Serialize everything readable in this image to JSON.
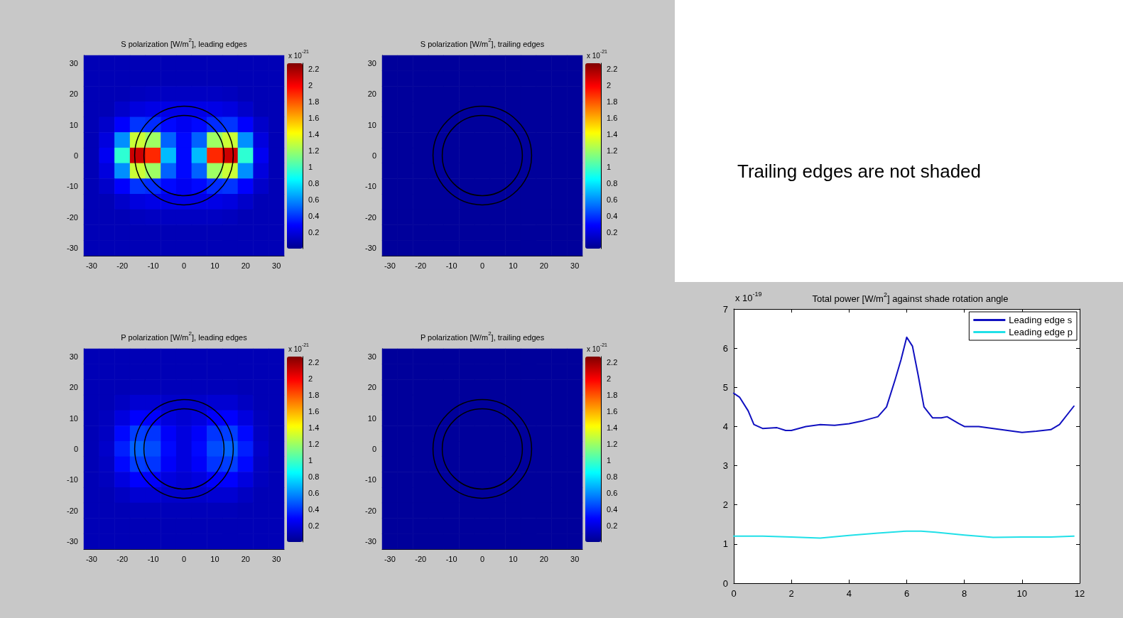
{
  "chart_data": [
    {
      "type": "heatmap",
      "title": "S polarization [W/m$^{2}$], leading edges",
      "clabel": "x 10$^{-21}$",
      "categories": [
        "-30",
        null,
        "-20",
        null,
        "-10",
        null,
        "0",
        null,
        "10",
        null,
        "20",
        null,
        "30"
      ],
      "y_categories": [
        "30",
        null,
        "20",
        null,
        "10",
        null,
        "0",
        null,
        "-10",
        null,
        "-20",
        null,
        "-30"
      ],
      "clim": [
        0,
        2.27
      ],
      "cticks": [
        0.2,
        0.4,
        0.6,
        0.8,
        1,
        1.2,
        1.4,
        1.6,
        1.8,
        2,
        2.2
      ],
      "cells": [
        [
          0.1,
          0.1,
          0.1,
          0.1,
          0.1,
          0.1,
          0.1,
          0.1,
          0.1,
          0.1,
          0.1,
          0.1,
          0.1
        ],
        [
          0.1,
          0.1,
          0.1,
          0.1,
          0.1,
          0.1,
          0.1,
          0.1,
          0.1,
          0.1,
          0.1,
          0.1,
          0.1
        ],
        [
          0.1,
          0.1,
          0.1,
          0.12,
          0.13,
          0.13,
          0.13,
          0.13,
          0.13,
          0.12,
          0.1,
          0.1,
          0.1
        ],
        [
          0.1,
          0.1,
          0.15,
          0.2,
          0.22,
          0.22,
          0.22,
          0.22,
          0.22,
          0.2,
          0.15,
          0.1,
          0.1
        ],
        [
          0.1,
          0.15,
          0.28,
          0.4,
          0.38,
          0.3,
          0.25,
          0.3,
          0.38,
          0.4,
          0.28,
          0.15,
          0.1
        ],
        [
          0.1,
          0.2,
          0.6,
          1.3,
          1.2,
          0.5,
          0.3,
          0.5,
          1.2,
          1.3,
          0.6,
          0.2,
          0.1
        ],
        [
          0.1,
          0.25,
          0.95,
          2.1,
          1.9,
          0.7,
          0.3,
          0.7,
          1.9,
          2.1,
          0.95,
          0.25,
          0.1
        ],
        [
          0.1,
          0.2,
          0.6,
          1.3,
          1.2,
          0.5,
          0.3,
          0.5,
          1.2,
          1.3,
          0.6,
          0.2,
          0.1
        ],
        [
          0.1,
          0.15,
          0.28,
          0.4,
          0.38,
          0.3,
          0.25,
          0.3,
          0.38,
          0.4,
          0.28,
          0.15,
          0.1
        ],
        [
          0.1,
          0.1,
          0.15,
          0.2,
          0.22,
          0.22,
          0.22,
          0.22,
          0.22,
          0.2,
          0.15,
          0.1,
          0.1
        ],
        [
          0.1,
          0.1,
          0.1,
          0.12,
          0.13,
          0.13,
          0.13,
          0.13,
          0.13,
          0.12,
          0.1,
          0.1,
          0.1
        ],
        [
          0.1,
          0.1,
          0.1,
          0.1,
          0.1,
          0.1,
          0.1,
          0.1,
          0.1,
          0.1,
          0.1,
          0.1,
          0.1
        ],
        [
          0.1,
          0.1,
          0.1,
          0.1,
          0.1,
          0.1,
          0.1,
          0.1,
          0.1,
          0.1,
          0.1,
          0.1,
          0.1
        ]
      ]
    },
    {
      "type": "heatmap",
      "title": "S polarization [W/m$^{2}$], trailing edges",
      "clabel": "x 10$^{-21}$",
      "categories": [
        "-30",
        null,
        "-20",
        null,
        "-10",
        null,
        "0",
        null,
        "10",
        null,
        "20",
        null,
        "30"
      ],
      "y_categories": [
        "30",
        null,
        "20",
        null,
        "10",
        null,
        "0",
        null,
        "-10",
        null,
        "-20",
        null,
        "-30"
      ],
      "clim": [
        0,
        2.27
      ],
      "cticks": [
        0.2,
        0.4,
        0.6,
        0.8,
        1,
        1.2,
        1.4,
        1.6,
        1.8,
        2,
        2.2
      ],
      "cells": [
        [
          0.03,
          0.03,
          0.03,
          0.03,
          0.03,
          0.03,
          0.03,
          0.03,
          0.03,
          0.03,
          0.03,
          0.03,
          0.03
        ],
        [
          0.03,
          0.03,
          0.03,
          0.03,
          0.03,
          0.03,
          0.03,
          0.03,
          0.03,
          0.03,
          0.03,
          0.03,
          0.03
        ],
        [
          0.03,
          0.03,
          0.03,
          0.03,
          0.03,
          0.03,
          0.03,
          0.03,
          0.03,
          0.03,
          0.03,
          0.03,
          0.03
        ],
        [
          0.03,
          0.03,
          0.03,
          0.03,
          0.03,
          0.03,
          0.03,
          0.03,
          0.03,
          0.03,
          0.03,
          0.03,
          0.03
        ],
        [
          0.03,
          0.03,
          0.03,
          0.03,
          0.03,
          0.03,
          0.03,
          0.03,
          0.03,
          0.03,
          0.03,
          0.03,
          0.03
        ],
        [
          0.03,
          0.03,
          0.03,
          0.03,
          0.03,
          0.03,
          0.03,
          0.03,
          0.03,
          0.03,
          0.03,
          0.03,
          0.03
        ],
        [
          0.03,
          0.03,
          0.03,
          0.03,
          0.03,
          0.03,
          0.03,
          0.03,
          0.03,
          0.03,
          0.03,
          0.03,
          0.03
        ],
        [
          0.03,
          0.03,
          0.03,
          0.03,
          0.03,
          0.03,
          0.03,
          0.03,
          0.03,
          0.03,
          0.03,
          0.03,
          0.03
        ],
        [
          0.03,
          0.03,
          0.03,
          0.03,
          0.03,
          0.03,
          0.03,
          0.03,
          0.03,
          0.03,
          0.03,
          0.03,
          0.03
        ],
        [
          0.03,
          0.03,
          0.03,
          0.03,
          0.03,
          0.03,
          0.03,
          0.03,
          0.03,
          0.03,
          0.03,
          0.03,
          0.03
        ],
        [
          0.03,
          0.03,
          0.03,
          0.03,
          0.03,
          0.03,
          0.03,
          0.03,
          0.03,
          0.03,
          0.03,
          0.03,
          0.03
        ],
        [
          0.03,
          0.03,
          0.03,
          0.03,
          0.03,
          0.03,
          0.03,
          0.03,
          0.03,
          0.03,
          0.03,
          0.03,
          0.03
        ],
        [
          0.03,
          0.03,
          0.03,
          0.03,
          0.03,
          0.03,
          0.03,
          0.03,
          0.03,
          0.03,
          0.03,
          0.03,
          0.03
        ]
      ]
    },
    {
      "type": "other",
      "annotations": [
        "Trailing edges are not shaded"
      ]
    },
    {
      "type": "heatmap",
      "title": "P polarization [W/m$^{2}$], leading edges",
      "clabel": "x 10$^{-21}$",
      "categories": [
        "-30",
        null,
        "-20",
        null,
        "-10",
        null,
        "0",
        null,
        "10",
        null,
        "20",
        null,
        "30"
      ],
      "y_categories": [
        "30",
        null,
        "20",
        null,
        "10",
        null,
        "0",
        null,
        "-10",
        null,
        "-20",
        null,
        "-30"
      ],
      "clim": [
        0,
        2.27
      ],
      "cticks": [
        0.2,
        0.4,
        0.6,
        0.8,
        1,
        1.2,
        1.4,
        1.6,
        1.8,
        2,
        2.2
      ],
      "cells": [
        [
          0.1,
          0.1,
          0.1,
          0.1,
          0.1,
          0.1,
          0.1,
          0.1,
          0.1,
          0.1,
          0.1,
          0.1,
          0.1
        ],
        [
          0.1,
          0.1,
          0.1,
          0.1,
          0.1,
          0.1,
          0.1,
          0.1,
          0.1,
          0.1,
          0.1,
          0.1,
          0.1
        ],
        [
          0.1,
          0.1,
          0.1,
          0.11,
          0.11,
          0.11,
          0.11,
          0.11,
          0.11,
          0.11,
          0.1,
          0.1,
          0.1
        ],
        [
          0.1,
          0.1,
          0.13,
          0.17,
          0.17,
          0.15,
          0.15,
          0.15,
          0.17,
          0.17,
          0.13,
          0.1,
          0.1
        ],
        [
          0.1,
          0.12,
          0.2,
          0.28,
          0.27,
          0.2,
          0.17,
          0.2,
          0.27,
          0.28,
          0.2,
          0.12,
          0.1
        ],
        [
          0.1,
          0.13,
          0.3,
          0.42,
          0.4,
          0.27,
          0.2,
          0.27,
          0.4,
          0.42,
          0.3,
          0.13,
          0.1
        ],
        [
          0.1,
          0.15,
          0.35,
          0.5,
          0.45,
          0.3,
          0.2,
          0.3,
          0.45,
          0.5,
          0.35,
          0.15,
          0.1
        ],
        [
          0.1,
          0.13,
          0.3,
          0.42,
          0.4,
          0.27,
          0.2,
          0.27,
          0.4,
          0.42,
          0.3,
          0.13,
          0.1
        ],
        [
          0.1,
          0.12,
          0.2,
          0.28,
          0.27,
          0.2,
          0.17,
          0.2,
          0.27,
          0.28,
          0.2,
          0.12,
          0.1
        ],
        [
          0.1,
          0.1,
          0.13,
          0.17,
          0.17,
          0.15,
          0.15,
          0.15,
          0.17,
          0.17,
          0.13,
          0.1,
          0.1
        ],
        [
          0.1,
          0.1,
          0.1,
          0.11,
          0.11,
          0.11,
          0.11,
          0.11,
          0.11,
          0.11,
          0.1,
          0.1,
          0.1
        ],
        [
          0.1,
          0.1,
          0.1,
          0.1,
          0.1,
          0.1,
          0.1,
          0.1,
          0.1,
          0.1,
          0.1,
          0.1,
          0.1
        ],
        [
          0.1,
          0.1,
          0.1,
          0.1,
          0.1,
          0.1,
          0.1,
          0.1,
          0.1,
          0.1,
          0.1,
          0.1,
          0.1
        ]
      ]
    },
    {
      "type": "heatmap",
      "title": "P polarization [W/m$^{2}$], trailing edges",
      "clabel": "x 10$^{-21}$",
      "categories": [
        "-30",
        null,
        "-20",
        null,
        "-10",
        null,
        "0",
        null,
        "10",
        null,
        "20",
        null,
        "30"
      ],
      "y_categories": [
        "30",
        null,
        "20",
        null,
        "10",
        null,
        "0",
        null,
        "-10",
        null,
        "-20",
        null,
        "-30"
      ],
      "clim": [
        0,
        2.27
      ],
      "cticks": [
        0.2,
        0.4,
        0.6,
        0.8,
        1,
        1.2,
        1.4,
        1.6,
        1.8,
        2,
        2.2
      ],
      "cells": [
        [
          0.03,
          0.03,
          0.03,
          0.03,
          0.03,
          0.03,
          0.03,
          0.03,
          0.03,
          0.03,
          0.03,
          0.03,
          0.03
        ],
        [
          0.03,
          0.03,
          0.03,
          0.03,
          0.03,
          0.03,
          0.03,
          0.03,
          0.03,
          0.03,
          0.03,
          0.03,
          0.03
        ],
        [
          0.03,
          0.03,
          0.03,
          0.03,
          0.03,
          0.03,
          0.03,
          0.03,
          0.03,
          0.03,
          0.03,
          0.03,
          0.03
        ],
        [
          0.03,
          0.03,
          0.03,
          0.03,
          0.03,
          0.03,
          0.03,
          0.03,
          0.03,
          0.03,
          0.03,
          0.03,
          0.03
        ],
        [
          0.03,
          0.03,
          0.03,
          0.03,
          0.03,
          0.03,
          0.03,
          0.03,
          0.03,
          0.03,
          0.03,
          0.03,
          0.03
        ],
        [
          0.03,
          0.03,
          0.03,
          0.03,
          0.03,
          0.03,
          0.03,
          0.03,
          0.03,
          0.03,
          0.03,
          0.03,
          0.03
        ],
        [
          0.03,
          0.03,
          0.03,
          0.03,
          0.03,
          0.03,
          0.03,
          0.03,
          0.03,
          0.03,
          0.03,
          0.03,
          0.03
        ],
        [
          0.03,
          0.03,
          0.03,
          0.03,
          0.03,
          0.03,
          0.03,
          0.03,
          0.03,
          0.03,
          0.03,
          0.03,
          0.03
        ],
        [
          0.03,
          0.03,
          0.03,
          0.03,
          0.03,
          0.03,
          0.03,
          0.03,
          0.03,
          0.03,
          0.03,
          0.03,
          0.03
        ],
        [
          0.03,
          0.03,
          0.03,
          0.03,
          0.03,
          0.03,
          0.03,
          0.03,
          0.03,
          0.03,
          0.03,
          0.03,
          0.03
        ],
        [
          0.03,
          0.03,
          0.03,
          0.03,
          0.03,
          0.03,
          0.03,
          0.03,
          0.03,
          0.03,
          0.03,
          0.03,
          0.03
        ],
        [
          0.03,
          0.03,
          0.03,
          0.03,
          0.03,
          0.03,
          0.03,
          0.03,
          0.03,
          0.03,
          0.03,
          0.03,
          0.03
        ],
        [
          0.03,
          0.03,
          0.03,
          0.03,
          0.03,
          0.03,
          0.03,
          0.03,
          0.03,
          0.03,
          0.03,
          0.03,
          0.03
        ]
      ]
    },
    {
      "type": "line",
      "title": "Total power [W/m$^{2}$] against shade rotation angle",
      "annotations": [
        "x 10$^{-19}$"
      ],
      "xlim": [
        0,
        12
      ],
      "xticks": [
        0,
        2,
        4,
        6,
        8,
        10,
        12
      ],
      "ylim": [
        0,
        7
      ],
      "yticks": [
        0,
        1,
        2,
        3,
        4,
        5,
        6,
        7
      ],
      "legend": "top right",
      "line_style": "solid",
      "series": [
        {
          "name": "Leading edge s",
          "color": "#1010c0",
          "x": [
            0,
            0.2,
            0.5,
            0.7,
            1,
            1.5,
            1.8,
            2,
            2.5,
            3,
            3.5,
            4,
            4.5,
            5,
            5.3,
            5.6,
            5.8,
            6,
            6.2,
            6.4,
            6.6,
            6.9,
            7.2,
            7.4,
            7.8,
            8,
            8.5,
            9,
            9.5,
            10,
            10.5,
            11,
            11.3,
            11.8
          ],
          "values": [
            4.85,
            4.75,
            4.4,
            4.05,
            3.95,
            3.97,
            3.9,
            3.9,
            4,
            4.05,
            4.03,
            4.07,
            4.15,
            4.25,
            4.5,
            5.2,
            5.7,
            6.28,
            6.05,
            5.3,
            4.5,
            4.22,
            4.22,
            4.25,
            4.08,
            4,
            4,
            3.95,
            3.9,
            3.85,
            3.88,
            3.92,
            4.05,
            4.52
          ]
        },
        {
          "name": "Leading edge p",
          "color": "#20e0e8",
          "x": [
            0,
            1,
            2,
            3,
            4,
            5,
            6,
            6.5,
            7,
            8,
            9,
            10,
            11,
            11.8
          ],
          "values": [
            1.2,
            1.2,
            1.18,
            1.15,
            1.22,
            1.28,
            1.33,
            1.33,
            1.3,
            1.23,
            1.17,
            1.18,
            1.18,
            1.2
          ]
        }
      ]
    }
  ]
}
